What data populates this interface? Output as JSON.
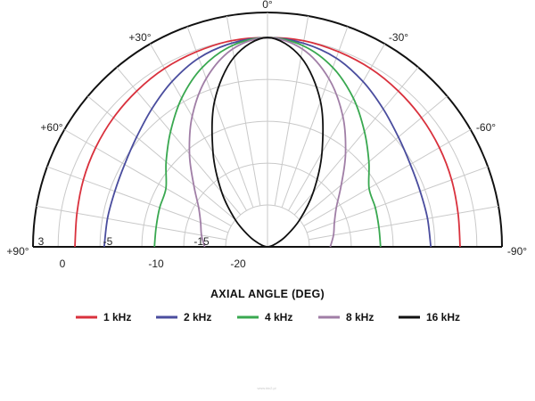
{
  "chart_data": {
    "type": "polar",
    "xlabel": "AXIAL ANGLE (DEG)",
    "angle_labels": [
      {
        "text": "0°",
        "angle": 0
      },
      {
        "text": "+30°",
        "angle": 30
      },
      {
        "text": "-30°",
        "angle": -30
      },
      {
        "text": "+60°",
        "angle": 60
      },
      {
        "text": "-60°",
        "angle": -60
      },
      {
        "text": "+90°",
        "angle": 90
      },
      {
        "text": "-90°",
        "angle": -90
      }
    ],
    "radial_axis": {
      "unit": "dB",
      "range": [
        -25,
        3
      ],
      "tick_labels": [
        {
          "text": "3",
          "value": 3
        },
        {
          "text": "0",
          "value": 0
        },
        {
          "text": "-5",
          "value": -5
        },
        {
          "text": "-10",
          "value": -10
        },
        {
          "text": "-15",
          "value": -15
        },
        {
          "text": "-20",
          "value": -20
        }
      ],
      "rings": [
        3,
        0,
        -5,
        -10,
        -15,
        -20
      ],
      "spokes_deg": 10
    },
    "grid": true,
    "legend_position": "bottom",
    "series": [
      {
        "name": "1 kHz",
        "color": "#d9313d",
        "angles": [
          0,
          10,
          20,
          30,
          40,
          50,
          60,
          70,
          80,
          90
        ],
        "values": [
          0,
          0,
          -0.2,
          -0.4,
          -0.7,
          -1.0,
          -1.3,
          -1.6,
          -1.9,
          -2.0
        ]
      },
      {
        "name": "2 kHz",
        "color": "#4a4d9e",
        "angles": [
          0,
          10,
          20,
          30,
          40,
          50,
          60,
          70,
          80,
          90
        ],
        "values": [
          0,
          -0.3,
          -1.0,
          -2.2,
          -3.5,
          -4.6,
          -5.3,
          -5.6,
          -5.6,
          -5.5
        ]
      },
      {
        "name": "4 kHz",
        "color": "#39a850",
        "angles": [
          0,
          10,
          20,
          30,
          40,
          50,
          60,
          70,
          80,
          90
        ],
        "values": [
          0,
          -0.6,
          -2.2,
          -4.5,
          -7.0,
          -9.2,
          -11.0,
          -11.3,
          -11.5,
          -11.5
        ]
      },
      {
        "name": "8 kHz",
        "color": "#a07ea6",
        "angles": [
          0,
          10,
          20,
          30,
          40,
          50,
          60,
          70,
          80,
          90
        ],
        "values": [
          0,
          -1.0,
          -3.6,
          -7.0,
          -10.5,
          -13.5,
          -15.5,
          -16.5,
          -17.0,
          -17.5
        ]
      },
      {
        "name": "16 kHz",
        "color": "#111111",
        "angles": [
          0,
          10,
          20,
          30,
          40,
          50,
          60,
          70,
          80,
          90
        ],
        "values": [
          0,
          -2.0,
          -6.5,
          -12.0,
          -16.5,
          -20.0,
          -22.5,
          -24.0,
          -24.7,
          -25.0
        ]
      }
    ]
  },
  "watermark": "www.ktc2.pl"
}
